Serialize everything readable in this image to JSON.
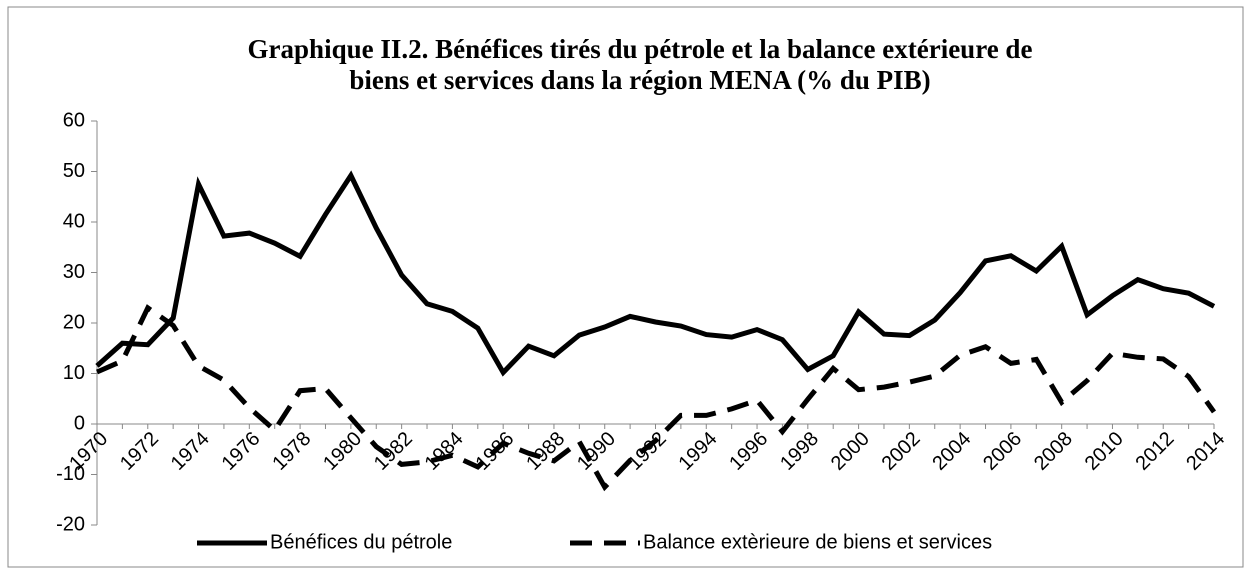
{
  "chart_data": {
    "type": "line",
    "title": [
      "Graphique II.2. Bénéfices tirés du pétrole et la balance extérieure de",
      "biens et services dans la région MENA (% du PIB)"
    ],
    "categories": [
      "1970",
      null,
      "1972",
      null,
      "1974",
      null,
      "1976",
      null,
      "1978",
      null,
      "1980",
      null,
      "1982",
      null,
      "1984",
      null,
      "1986",
      null,
      "1988",
      null,
      "1990",
      null,
      "1992",
      null,
      "1994",
      null,
      "1996",
      null,
      "1998",
      null,
      "2000",
      null,
      "2002",
      null,
      "2004",
      null,
      "2006",
      null,
      "2008",
      null,
      "2010",
      null,
      "2012",
      null,
      "2014"
    ],
    "series": [
      {
        "name": "Bénéfices du pétrole",
        "color": "#000000",
        "dash": "solid",
        "values": [
          11.5,
          16,
          15.7,
          21,
          47.5,
          37.2,
          37.8,
          35.8,
          33.2,
          41.5,
          49.2,
          38.8,
          29.5,
          23.8,
          22.3,
          19,
          10.2,
          15.4,
          13.5,
          17.6,
          19.2,
          21.3,
          20.2,
          19.4,
          17.7,
          17.2,
          18.7,
          16.7,
          10.8,
          13.5,
          22.2,
          17.8,
          17.5,
          20.6,
          26,
          32.3,
          33.3,
          30.3,
          35.2,
          21.6,
          25.4,
          28.6,
          26.8,
          25.9,
          23.3
        ]
      },
      {
        "name": "Balance extèrieure de biens et services",
        "color": "#000000",
        "dash": "dashed",
        "values": [
          10.3,
          12.5,
          23,
          19.5,
          11.5,
          8.7,
          3.2,
          -1.2,
          6.6,
          7,
          1.2,
          -4.5,
          -8,
          -7.5,
          -6.2,
          -8.5,
          -3.8,
          -5.8,
          -7.3,
          -3.5,
          -12.5,
          -7.2,
          -3.3,
          1.7,
          1.7,
          3,
          4.7,
          -1.5,
          4.9,
          11,
          6.8,
          7.3,
          8.3,
          9.5,
          13.6,
          15.3,
          12,
          12.8,
          4.3,
          8.6,
          14,
          13.2,
          12.9,
          9.4,
          2.4
        ]
      }
    ],
    "ylim": [
      -20,
      60
    ],
    "yticks": [
      -20,
      -10,
      0,
      10,
      20,
      30,
      40,
      50,
      60
    ],
    "grid": false,
    "legend": "bottom"
  }
}
